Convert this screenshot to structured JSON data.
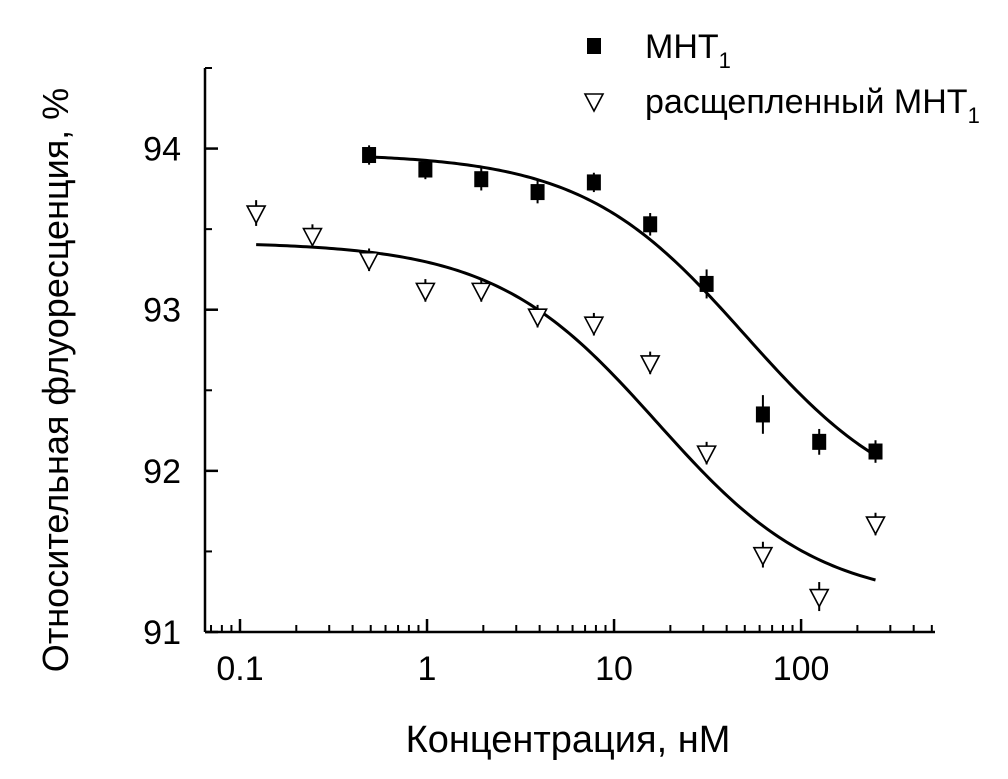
{
  "chart_data": {
    "type": "scatter",
    "xscale": "log",
    "xlim": [
      0.065,
      520
    ],
    "ylim": [
      91,
      94.5
    ],
    "xlabel": "Концентрация, нМ",
    "ylabel": "Относительная флуоресценция, %",
    "x_ticks": [
      0.1,
      1,
      10,
      100
    ],
    "x_tick_labels": [
      "0.1",
      "1",
      "10",
      "100"
    ],
    "y_ticks": [
      91,
      92,
      93,
      94
    ],
    "y_tick_labels": [
      "91",
      "92",
      "93",
      "94"
    ],
    "legend_position": "top-right",
    "grid": false,
    "series": [
      {
        "name": "МНТ",
        "name_subscript": "1",
        "marker": "filled-square",
        "x": [
          0.49,
          0.98,
          1.95,
          3.9,
          7.8,
          15.6,
          31.25,
          62.5,
          125,
          250
        ],
        "y": [
          93.96,
          93.87,
          93.81,
          93.73,
          93.79,
          93.53,
          93.16,
          92.35,
          92.18,
          92.12
        ],
        "err": [
          0.06,
          0.06,
          0.07,
          0.07,
          0.06,
          0.07,
          0.09,
          0.12,
          0.08,
          0.07
        ],
        "fit": {
          "top": 93.97,
          "bottom": 91.72,
          "ec50": 50,
          "hill": 1
        }
      },
      {
        "name": "расщепленный МНТ",
        "name_subscript": "1",
        "marker": "open-down-triangle",
        "x": [
          0.122,
          0.244,
          0.49,
          0.98,
          1.95,
          3.9,
          7.8,
          15.6,
          31.25,
          62.5,
          125,
          250
        ],
        "y": [
          93.6,
          93.46,
          93.31,
          93.12,
          93.12,
          92.96,
          92.91,
          92.67,
          92.11,
          91.48,
          91.22,
          91.67
        ],
        "err": [
          0.08,
          0.07,
          0.07,
          0.07,
          0.07,
          0.07,
          0.07,
          0.07,
          0.07,
          0.08,
          0.09,
          0.07
        ],
        "fit": {
          "top": 93.42,
          "bottom": 91.18,
          "ec50": 17,
          "hill": 1
        }
      }
    ]
  }
}
